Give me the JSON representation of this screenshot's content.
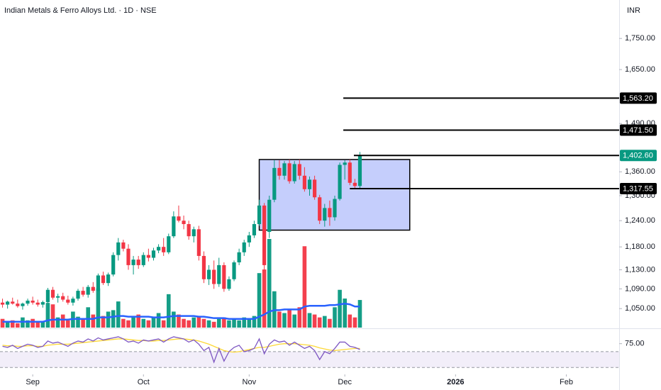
{
  "chart_data": {
    "type": "candlestick",
    "title": "Indian Metals & Ferro Alloys Ltd. · 1D · NSE",
    "currency": "INR",
    "log_scale": true,
    "up_color": "#089981",
    "down_color": "#f23645",
    "xlim": [
      -0.5,
      122.5
    ],
    "xticks": [
      {
        "value": 6,
        "label": "Sep"
      },
      {
        "value": 28,
        "label": "Oct"
      },
      {
        "value": 49,
        "label": "Nov"
      },
      {
        "value": 68,
        "label": "Dec"
      },
      {
        "value": 90,
        "label": "2026"
      },
      {
        "value": 112,
        "label": "Feb"
      }
    ],
    "ylim": [
      1013,
      1882
    ],
    "yticks": [
      {
        "value": 1750,
        "label": "1,750.00"
      },
      {
        "value": 1650,
        "label": "1,650.00"
      },
      {
        "value": 1490,
        "label": "1,490.00"
      },
      {
        "value": 1360,
        "label": "1,360.00"
      },
      {
        "value": 1300,
        "label": "1,300.00"
      },
      {
        "value": 1240,
        "label": "1,240.00"
      },
      {
        "value": 1180,
        "label": "1,180.00"
      },
      {
        "value": 1130,
        "label": "1,130.00"
      },
      {
        "value": 1090,
        "label": "1,090.00"
      },
      {
        "value": 1050,
        "label": "1,050.00"
      }
    ],
    "candles": {
      "open": [
        1062,
        1058,
        1064,
        1060,
        1055,
        1060,
        1066,
        1062,
        1058,
        1063,
        1088,
        1072,
        1075,
        1068,
        1062,
        1070,
        1086,
        1078,
        1094,
        1086,
        1118,
        1102,
        1120,
        1162,
        1190,
        1176,
        1140,
        1152,
        1140,
        1162,
        1156,
        1172,
        1180,
        1168,
        1204,
        1250,
        1240,
        1232,
        1204,
        1220,
        1160,
        1110,
        1130,
        1100,
        1140,
        1090,
        1110,
        1146,
        1168,
        1190,
        1206,
        1232,
        1276,
        1214,
        1290,
        1370,
        1350,
        1382,
        1336,
        1380,
        1350,
        1316,
        1340,
        1296,
        1240,
        1270,
        1248,
        1292,
        1378,
        1384,
        1332,
        1324
      ],
      "high": [
        1070,
        1066,
        1072,
        1068,
        1062,
        1070,
        1074,
        1068,
        1066,
        1092,
        1094,
        1080,
        1082,
        1076,
        1074,
        1090,
        1094,
        1098,
        1104,
        1122,
        1126,
        1124,
        1168,
        1200,
        1196,
        1186,
        1160,
        1160,
        1168,
        1176,
        1178,
        1186,
        1200,
        1210,
        1262,
        1276,
        1252,
        1240,
        1226,
        1228,
        1170,
        1140,
        1150,
        1156,
        1146,
        1116,
        1150,
        1176,
        1196,
        1214,
        1240,
        1290,
        1282,
        1300,
        1390,
        1390,
        1388,
        1392,
        1388,
        1392,
        1372,
        1348,
        1350,
        1302,
        1280,
        1288,
        1300,
        1384,
        1390,
        1392,
        1342,
        1412
      ],
      "low": [
        1052,
        1050,
        1058,
        1052,
        1048,
        1056,
        1058,
        1054,
        1052,
        1060,
        1068,
        1062,
        1064,
        1058,
        1056,
        1066,
        1074,
        1072,
        1082,
        1084,
        1098,
        1096,
        1116,
        1150,
        1170,
        1130,
        1120,
        1132,
        1136,
        1148,
        1150,
        1166,
        1160,
        1164,
        1200,
        1236,
        1220,
        1196,
        1190,
        1150,
        1102,
        1098,
        1090,
        1094,
        1084,
        1086,
        1106,
        1140,
        1160,
        1180,
        1200,
        1228,
        1130,
        1200,
        1284,
        1340,
        1340,
        1330,
        1330,
        1340,
        1310,
        1300,
        1290,
        1232,
        1226,
        1228,
        1240,
        1288,
        1340,
        1326,
        1316,
        1318
      ],
      "close": [
        1058,
        1064,
        1060,
        1055,
        1060,
        1066,
        1062,
        1058,
        1063,
        1088,
        1072,
        1075,
        1068,
        1062,
        1070,
        1086,
        1078,
        1094,
        1086,
        1118,
        1102,
        1120,
        1162,
        1190,
        1176,
        1140,
        1152,
        1140,
        1162,
        1156,
        1172,
        1180,
        1168,
        1204,
        1250,
        1240,
        1232,
        1204,
        1220,
        1160,
        1110,
        1130,
        1100,
        1140,
        1090,
        1110,
        1146,
        1168,
        1190,
        1206,
        1232,
        1276,
        1140,
        1290,
        1370,
        1350,
        1382,
        1336,
        1380,
        1350,
        1316,
        1340,
        1296,
        1240,
        1270,
        1248,
        1292,
        1378,
        1384,
        1332,
        1324,
        1402.6
      ]
    },
    "volume": {
      "values": [
        12,
        8,
        10,
        6,
        14,
        10,
        12,
        8,
        9,
        34,
        32,
        14,
        18,
        10,
        22,
        15,
        12,
        28,
        18,
        54,
        16,
        22,
        24,
        36,
        12,
        10,
        14,
        18,
        12,
        10,
        14,
        20,
        10,
        46,
        22,
        18,
        12,
        10,
        14,
        16,
        12,
        10,
        8,
        12,
        14,
        10,
        12,
        10,
        14,
        12,
        16,
        75,
        80,
        122,
        50,
        22,
        20,
        25,
        18,
        28,
        112,
        20,
        18,
        14,
        16,
        12,
        28,
        52,
        40,
        18,
        14,
        38
      ],
      "ma": [
        8,
        8,
        8,
        8,
        8,
        8,
        8,
        8,
        8,
        10,
        11,
        11,
        11,
        11,
        12,
        12,
        12,
        12,
        12,
        14,
        14,
        14,
        15,
        16,
        16,
        15,
        15,
        15,
        15,
        15,
        14,
        14,
        14,
        15,
        16,
        16,
        16,
        16,
        16,
        15,
        15,
        14,
        13,
        13,
        13,
        12,
        12,
        12,
        12,
        12,
        12,
        15,
        18,
        22,
        24,
        24,
        25,
        25,
        25,
        25,
        29,
        30,
        30,
        30,
        30,
        31,
        31,
        32,
        33,
        32,
        29,
        29
      ],
      "ma_color": "#2962ff"
    },
    "rsi": {
      "values": [
        70,
        68,
        72,
        66,
        70,
        74,
        72,
        68,
        70,
        80,
        76,
        78,
        74,
        70,
        76,
        80,
        78,
        84,
        80,
        86,
        82,
        84,
        86,
        88,
        84,
        78,
        80,
        76,
        82,
        80,
        82,
        84,
        78,
        84,
        88,
        86,
        84,
        78,
        82,
        74,
        62,
        68,
        40,
        66,
        42,
        60,
        68,
        72,
        60,
        62,
        66,
        84,
        56,
        74,
        82,
        78,
        80,
        72,
        78,
        72,
        66,
        70,
        62,
        45,
        60,
        56,
        66,
        78,
        78,
        70,
        68,
        64
      ],
      "ma": [
        72,
        71,
        71,
        70,
        70,
        71,
        71,
        70,
        70,
        72,
        73,
        74,
        74,
        74,
        75,
        76,
        77,
        78,
        79,
        80,
        81,
        82,
        83,
        84,
        84,
        83,
        82,
        81,
        81,
        80,
        80,
        81,
        81,
        82,
        83,
        84,
        84,
        83,
        82,
        80,
        77,
        74,
        70,
        66,
        62,
        60,
        59,
        60,
        62,
        64,
        66,
        68,
        68,
        70,
        72,
        74,
        75,
        75,
        75,
        74,
        73,
        72,
        70,
        67,
        65,
        63,
        62,
        63,
        64,
        65,
        66,
        66
      ],
      "color": "#7e57c2",
      "ma_color": "#fdd835",
      "ylim": [
        25,
        100
      ],
      "yticks": [
        {
          "value": 75,
          "label": "75.00"
        }
      ],
      "bands": [
        60,
        30
      ]
    },
    "box": {
      "x": [
        51,
        80.9
      ],
      "y": [
        1218,
        1392
      ],
      "color": "#c5cefc"
    },
    "levels": [
      {
        "value": 1563.2,
        "label": "1,563.20",
        "x_start": 67.7
      },
      {
        "value": 1471.5,
        "label": "1,471.50",
        "x_start": 67.7
      },
      {
        "value": 1317.55,
        "label": "1,317.55",
        "x_start": 69
      }
    ],
    "last_price": {
      "value": 1402.6,
      "label": "1,402.60",
      "x_start": 69.8
    }
  }
}
